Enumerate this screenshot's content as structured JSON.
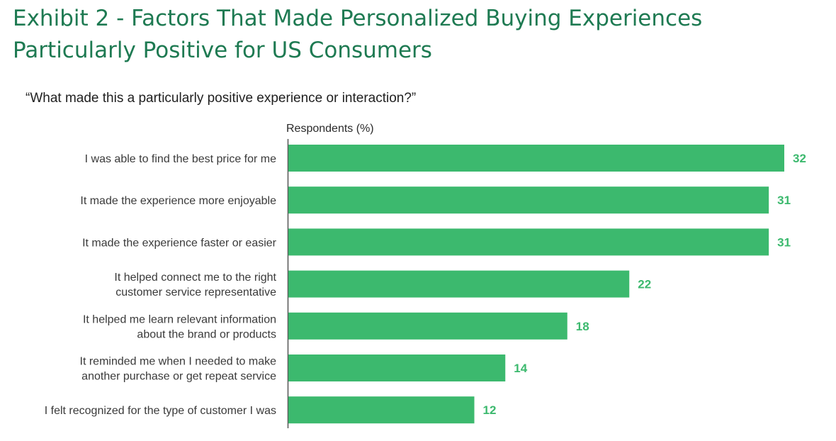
{
  "header": {
    "title": "Exhibit 2 - Factors That Made Personalized Buying Experiences Particularly Positive for US Consumers",
    "question": "“What made this a particularly positive experience or interaction?”"
  },
  "colors": {
    "title": "#1e7a52",
    "bar": "#3cb96e",
    "value_label": "#3cb96e",
    "axis": "#555555",
    "category_text": "#3a3a3a"
  },
  "chart_data": {
    "type": "bar",
    "orientation": "horizontal",
    "title": "",
    "xlabel": "Respondents (%)",
    "ylabel": "",
    "xlim": [
      0,
      32
    ],
    "grid": false,
    "legend": "none",
    "categories": [
      [
        "I was able to find the best price for me"
      ],
      [
        "It made the experience more enjoyable"
      ],
      [
        "It made the experience faster or easier"
      ],
      [
        "It helped connect me to the right",
        "customer service representative"
      ],
      [
        "It helped me learn relevant information",
        "about the brand or products"
      ],
      [
        "It reminded me when I needed to make",
        "another purchase or get repeat service"
      ],
      [
        "I felt recognized for the type of customer I was"
      ]
    ],
    "values": [
      32,
      31,
      31,
      22,
      18,
      14,
      12
    ],
    "data_labels": [
      "32",
      "31",
      "31",
      "22",
      "18",
      "14",
      "12"
    ]
  }
}
